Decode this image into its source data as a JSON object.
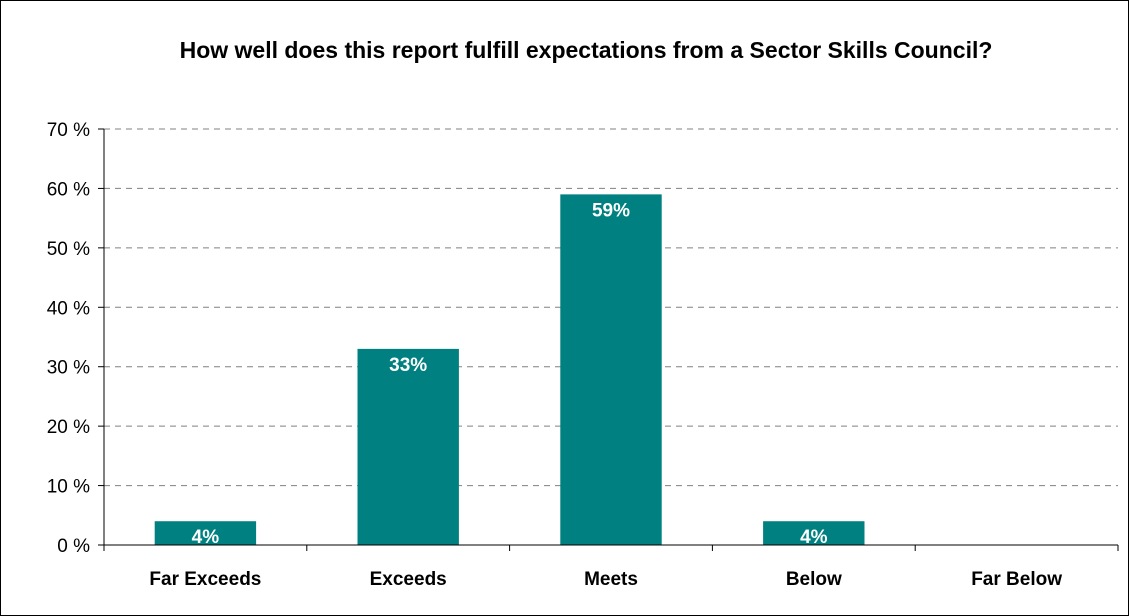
{
  "chart_data": {
    "type": "bar",
    "title": "How well does this report fulfill expectations from a Sector Skills Council?",
    "categories": [
      "Far Exceeds",
      "Exceeds",
      "Meets",
      "Below",
      "Far Below"
    ],
    "values": [
      4,
      33,
      59,
      4,
      0
    ],
    "data_labels": [
      "4%",
      "33%",
      "59%",
      "4%",
      ""
    ],
    "ylim": [
      0,
      70
    ],
    "yticks": [
      0,
      10,
      20,
      30,
      40,
      50,
      60,
      70
    ],
    "ytick_labels": [
      "0 %",
      "10 %",
      "20 %",
      "30 %",
      "40 %",
      "50 %",
      "60 %",
      "70 %"
    ],
    "xlabel": "",
    "ylabel": "",
    "grid": true,
    "legend": "none",
    "bar_color": "#008080",
    "grid_color": "#808080"
  }
}
